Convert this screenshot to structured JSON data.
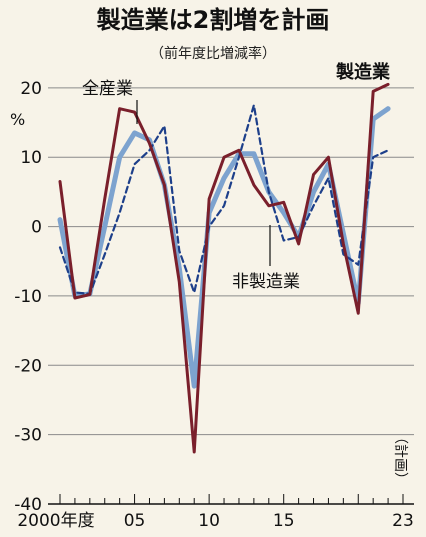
{
  "chart_data": {
    "type": "line",
    "title": "製造業は2割増を計画",
    "subtitle": "（前年度比増減率）",
    "ylabel": "%",
    "ylim": [
      -40,
      22
    ],
    "y_ticks": [
      20,
      10,
      0,
      -10,
      -20,
      -30,
      -40
    ],
    "y_tick_labels": [
      "20",
      "10",
      "0",
      "-10",
      "-20",
      "-30",
      "-40"
    ],
    "x": [
      2000,
      2001,
      2002,
      2003,
      2004,
      2005,
      2006,
      2007,
      2008,
      2009,
      2010,
      2011,
      2012,
      2013,
      2014,
      2015,
      2016,
      2017,
      2018,
      2019,
      2020,
      2021,
      2022,
      2023
    ],
    "x_tick_labels": [
      {
        "x": 2000,
        "label": "2000年度"
      },
      {
        "x": 2005,
        "label": "05"
      },
      {
        "x": 2010,
        "label": "10"
      },
      {
        "x": 2015,
        "label": "15"
      },
      {
        "x": 2023,
        "label": "23"
      }
    ],
    "note": "（計画）",
    "grid": "horizontal",
    "series": [
      {
        "name": "製造業",
        "color": "#7a1f2b",
        "style": "solid",
        "values": [
          6.5,
          -10.3,
          -9.8,
          4,
          17,
          16.5,
          12,
          6,
          -8,
          -32.5,
          4,
          10,
          11,
          6,
          3,
          3.5,
          -2.5,
          7.5,
          10,
          -2.5,
          -12.5,
          19.5,
          20.5,
          null
        ]
      },
      {
        "name": "全産業",
        "color": "#7da3cf",
        "style": "solid-thick",
        "values": [
          1,
          -10,
          -9.7,
          0,
          10,
          13.5,
          12.5,
          6,
          -6,
          -23,
          2,
          7,
          10.5,
          10.5,
          5,
          2,
          -1.5,
          5,
          9,
          -1,
          -11,
          15.5,
          17,
          null
        ]
      },
      {
        "name": "非製造業",
        "color": "#1d3f8a",
        "style": "dashed",
        "values": [
          -3,
          -9.5,
          -9.7,
          -4,
          2,
          9,
          11,
          14.5,
          -3.5,
          -9.5,
          0,
          3,
          10,
          17.5,
          5,
          -2,
          -1.5,
          3,
          7,
          -4,
          -5.5,
          10,
          11,
          null
        ]
      }
    ]
  }
}
